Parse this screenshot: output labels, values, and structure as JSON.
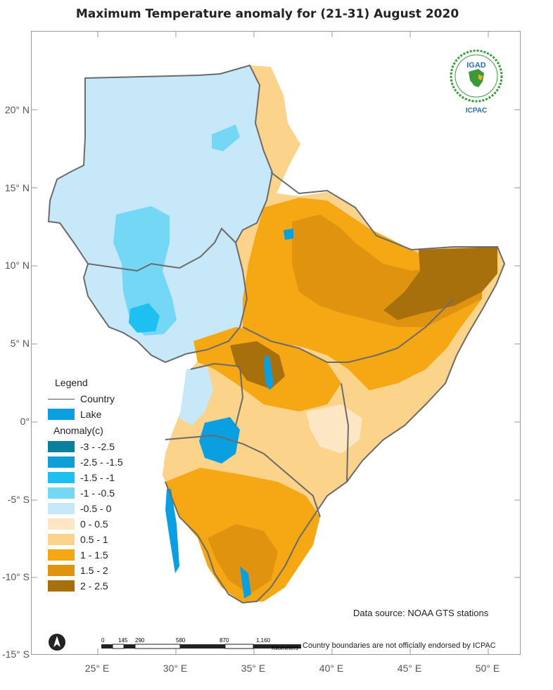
{
  "title": "Maximum Temperature  anomaly for (21-31)  August 2020",
  "latitude_labels": [
    "20° N",
    "15° N",
    "10° N",
    "5° N",
    "0°",
    "-5° S",
    "-10° S",
    "-15° S"
  ],
  "longitude_labels": [
    "25° E",
    "30° E",
    "35° E",
    "40° E",
    "45° E",
    "50° E"
  ],
  "legend": {
    "title": "Legend",
    "country_label": "Country",
    "lake_label": "Lake",
    "anomaly_title": "Anomaly(c)",
    "classes": [
      {
        "label": "-3 - -2.5",
        "color": "#0a7f9e"
      },
      {
        "label": "-2.5 - -1.5",
        "color": "#0e9ed8"
      },
      {
        "label": "-1.5 - -1",
        "color": "#1ec0f2"
      },
      {
        "label": "-1 - -0.5",
        "color": "#74d7f5"
      },
      {
        "label": "-0.5 - 0",
        "color": "#c6e8f8"
      },
      {
        "label": "0 - 0.5",
        "color": "#fde6c3"
      },
      {
        "label": "0.5 - 1",
        "color": "#fbd38a"
      },
      {
        "label": "1 - 1.5",
        "color": "#f5a714"
      },
      {
        "label": "1.5 - 2",
        "color": "#e0930f"
      },
      {
        "label": "2 - 2.5",
        "color": "#a8700c"
      }
    ],
    "lake_color": "#0a9fe0"
  },
  "data_source": "Data source: NOAA   GTS stations",
  "disclaimer": "Country boundaries are not officially endorsed by ICPAC",
  "scale": {
    "ticks": [
      "0",
      "145",
      "290",
      "580",
      "870",
      "1,160"
    ],
    "unit": "Kilometers"
  },
  "logo": {
    "top_text": "IGAD",
    "bottom_text": "ICPAC"
  }
}
